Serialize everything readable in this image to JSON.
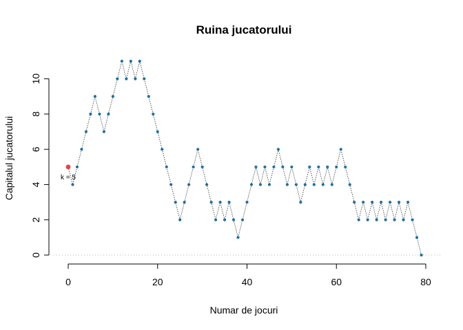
{
  "chart_data": {
    "type": "line",
    "title": "Ruina jucatorului",
    "xlabel": "Numar de jocuri",
    "ylabel": "Capitalul jucatorului",
    "xlim": [
      0,
      80
    ],
    "ylim": [
      0,
      11
    ],
    "x_ticks": [
      0,
      20,
      40,
      60,
      80
    ],
    "y_ticks": [
      0,
      2,
      4,
      6,
      8,
      10
    ],
    "annotation": "k = 5",
    "start_point": {
      "x": 0,
      "y": 5
    },
    "values": [
      5,
      4,
      5,
      6,
      7,
      8,
      9,
      8,
      7,
      8,
      9,
      10,
      11,
      10,
      11,
      10,
      11,
      10,
      9,
      8,
      7,
      6,
      5,
      4,
      3,
      2,
      3,
      4,
      5,
      6,
      5,
      4,
      3,
      2,
      3,
      2,
      3,
      2,
      1,
      2,
      3,
      4,
      5,
      4,
      5,
      4,
      5,
      6,
      5,
      4,
      5,
      4,
      3,
      4,
      5,
      4,
      5,
      4,
      5,
      4,
      5,
      6,
      5,
      4,
      3,
      2,
      3,
      2,
      3,
      2,
      3,
      2,
      3,
      2,
      3,
      2,
      3,
      2,
      1,
      0
    ],
    "colors": {
      "points": "#1f6f9f",
      "start": "#e0454b",
      "line": "#333333",
      "zero_line": "#b3b3b3"
    }
  }
}
